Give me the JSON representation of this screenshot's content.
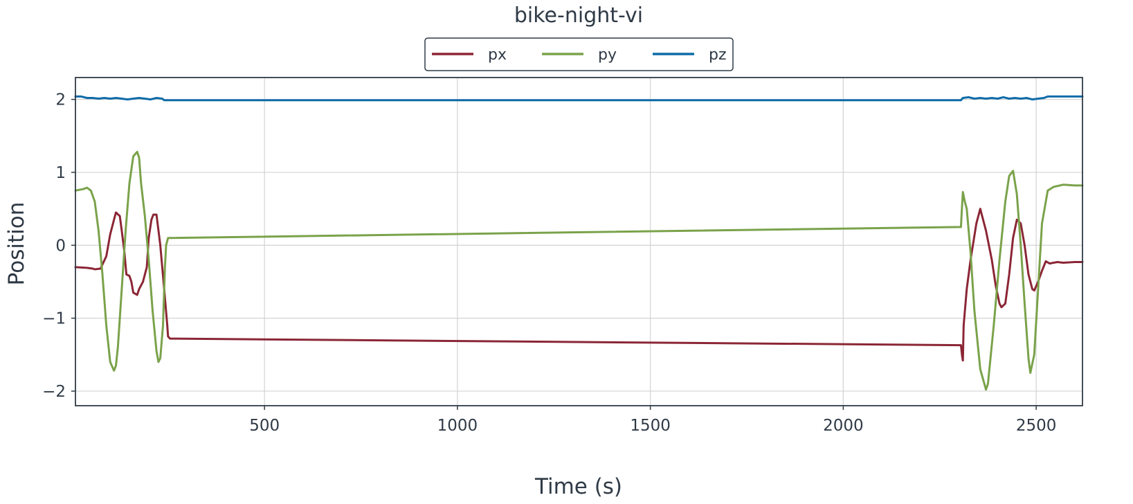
{
  "chart_data": {
    "type": "line",
    "title": "bike-night-vi",
    "xlabel": "Time (s)",
    "ylabel": "Position",
    "xlim": [
      10,
      2620
    ],
    "ylim": [
      -2.2,
      2.3
    ],
    "xticks": [
      500,
      1000,
      1500,
      2000,
      2500
    ],
    "yticks": [
      -2,
      -1,
      0,
      1,
      2
    ],
    "xtick_labels": [
      "500",
      "1000",
      "1500",
      "2000",
      "2500"
    ],
    "ytick_labels": [
      "−2",
      "−1",
      "0",
      "1",
      "2"
    ],
    "grid": true,
    "legend": {
      "placement": "top-center",
      "entries": [
        "px",
        "py",
        "pz"
      ]
    },
    "series": [
      {
        "name": "px",
        "color": "#8b2635",
        "x": [
          10,
          40,
          55,
          60,
          75,
          90,
          100,
          110,
          115,
          125,
          130,
          137,
          142,
          150,
          155,
          160,
          170,
          175,
          185,
          195,
          200,
          207,
          212,
          220,
          230,
          240,
          248,
          250,
          255,
          2305,
          2308,
          2310,
          2312,
          2320,
          2330,
          2345,
          2355,
          2370,
          2385,
          2395,
          2405,
          2410,
          2420,
          2430,
          2440,
          2450,
          2460,
          2470,
          2480,
          2490,
          2495,
          2505,
          2515,
          2525,
          2535,
          2545,
          2555,
          2570,
          2600,
          2620
        ],
        "y": [
          -0.3,
          -0.31,
          -0.32,
          -0.33,
          -0.32,
          -0.15,
          0.15,
          0.35,
          0.45,
          0.4,
          0.2,
          -0.1,
          -0.4,
          -0.42,
          -0.5,
          -0.65,
          -0.68,
          -0.6,
          -0.5,
          -0.3,
          0.1,
          0.35,
          0.42,
          0.42,
          0.0,
          -0.6,
          -1.1,
          -1.25,
          -1.28,
          -1.37,
          -1.52,
          -1.58,
          -1.1,
          -0.6,
          -0.2,
          0.3,
          0.5,
          0.2,
          -0.2,
          -0.55,
          -0.8,
          -0.85,
          -0.8,
          -0.4,
          0.1,
          0.35,
          0.3,
          0.0,
          -0.4,
          -0.6,
          -0.62,
          -0.5,
          -0.35,
          -0.22,
          -0.25,
          -0.24,
          -0.23,
          -0.24,
          -0.23,
          -0.23
        ]
      },
      {
        "name": "py",
        "color": "#7aa24a",
        "x": [
          10,
          20,
          30,
          40,
          50,
          60,
          70,
          80,
          90,
          100,
          110,
          115,
          120,
          130,
          140,
          150,
          160,
          170,
          175,
          180,
          190,
          200,
          210,
          220,
          225,
          230,
          237,
          242,
          245,
          250,
          255,
          2305,
          2307,
          2310,
          2315,
          2320,
          2330,
          2340,
          2355,
          2370,
          2375,
          2390,
          2405,
          2420,
          2430,
          2440,
          2450,
          2460,
          2470,
          2480,
          2485,
          2495,
          2505,
          2515,
          2530,
          2545,
          2570,
          2600,
          2620
        ],
        "y": [
          0.75,
          0.76,
          0.77,
          0.79,
          0.75,
          0.6,
          0.2,
          -0.4,
          -1.1,
          -1.6,
          -1.72,
          -1.65,
          -1.4,
          -0.6,
          0.2,
          0.85,
          1.22,
          1.28,
          1.2,
          0.85,
          0.4,
          -0.2,
          -0.9,
          -1.45,
          -1.6,
          -1.55,
          -1.1,
          -0.3,
          0.0,
          0.1,
          0.1,
          0.25,
          0.45,
          0.73,
          0.6,
          0.5,
          -0.1,
          -0.9,
          -1.7,
          -1.98,
          -1.9,
          -1.1,
          -0.2,
          0.6,
          0.95,
          1.02,
          0.7,
          0.0,
          -0.8,
          -1.55,
          -1.75,
          -1.5,
          -0.6,
          0.3,
          0.75,
          0.8,
          0.83,
          0.82,
          0.82
        ]
      },
      {
        "name": "pz",
        "color": "#0e6ba8",
        "x": [
          10,
          25,
          40,
          55,
          70,
          85,
          100,
          115,
          130,
          145,
          160,
          175,
          190,
          205,
          220,
          235,
          240,
          250,
          1000,
          2000,
          2305,
          2310,
          2325,
          2340,
          2355,
          2370,
          2385,
          2400,
          2415,
          2430,
          2445,
          2460,
          2475,
          2490,
          2505,
          2520,
          2530,
          2560,
          2620
        ],
        "y": [
          2.04,
          2.04,
          2.02,
          2.02,
          2.01,
          2.02,
          2.01,
          2.02,
          2.01,
          2.0,
          2.01,
          2.02,
          2.01,
          2.0,
          2.02,
          2.01,
          1.99,
          1.99,
          1.99,
          1.99,
          1.99,
          2.02,
          2.03,
          2.01,
          2.02,
          2.01,
          2.02,
          2.01,
          2.03,
          2.01,
          2.02,
          2.01,
          2.02,
          2.0,
          2.01,
          2.02,
          2.04,
          2.04,
          2.04
        ]
      }
    ]
  }
}
